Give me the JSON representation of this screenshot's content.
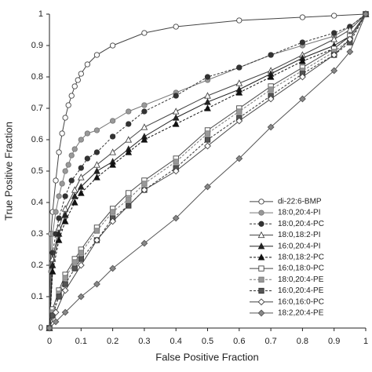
{
  "chart_data": {
    "type": "line",
    "xlabel": "False Positive Fraction",
    "ylabel": "True Positive Fraction",
    "xlim": [
      0,
      1
    ],
    "ylim": [
      0,
      1
    ],
    "xticks": [
      0,
      0.1,
      0.2,
      0.3,
      0.4,
      0.5,
      0.6,
      0.7,
      0.8,
      0.9,
      1
    ],
    "yticks": [
      0,
      0.1,
      0.2,
      0.3,
      0.4,
      0.5,
      0.6,
      0.7,
      0.8,
      0.9,
      1
    ],
    "grid": false,
    "legend": "lower right",
    "series": [
      {
        "name": "di-22:6-BMP",
        "color": "#444444",
        "fill": "#ffffff",
        "marker": "circle",
        "dash": false,
        "x": [
          0,
          0.005,
          0.01,
          0.02,
          0.03,
          0.04,
          0.05,
          0.06,
          0.07,
          0.08,
          0.09,
          0.1,
          0.12,
          0.15,
          0.2,
          0.3,
          0.4,
          0.6,
          0.8,
          0.9,
          1
        ],
        "values": [
          0,
          0.3,
          0.37,
          0.47,
          0.56,
          0.62,
          0.67,
          0.71,
          0.74,
          0.77,
          0.79,
          0.81,
          0.84,
          0.87,
          0.9,
          0.94,
          0.96,
          0.98,
          0.99,
          0.995,
          1
        ]
      },
      {
        "name": "18:0,20:4-PI",
        "color": "#777777",
        "fill": "#999999",
        "marker": "circle",
        "dash": false,
        "x": [
          0,
          0.005,
          0.01,
          0.02,
          0.03,
          0.04,
          0.05,
          0.06,
          0.07,
          0.08,
          0.1,
          0.12,
          0.15,
          0.2,
          0.25,
          0.3,
          0.4,
          0.5,
          0.6,
          0.7,
          0.8,
          0.9,
          0.95,
          1
        ],
        "values": [
          0,
          0.18,
          0.3,
          0.37,
          0.42,
          0.46,
          0.5,
          0.52,
          0.55,
          0.57,
          0.6,
          0.62,
          0.63,
          0.66,
          0.69,
          0.71,
          0.75,
          0.79,
          0.83,
          0.87,
          0.9,
          0.93,
          0.96,
          1
        ]
      },
      {
        "name": "18:0,20:4-PC",
        "color": "#333333",
        "fill": "#333333",
        "marker": "circle",
        "dash": true,
        "x": [
          0,
          0.01,
          0.02,
          0.03,
          0.05,
          0.07,
          0.1,
          0.12,
          0.15,
          0.2,
          0.25,
          0.3,
          0.4,
          0.5,
          0.6,
          0.7,
          0.8,
          0.9,
          0.95,
          1
        ],
        "values": [
          0,
          0.24,
          0.3,
          0.35,
          0.42,
          0.47,
          0.51,
          0.54,
          0.56,
          0.61,
          0.65,
          0.69,
          0.74,
          0.8,
          0.83,
          0.87,
          0.91,
          0.94,
          0.96,
          1
        ]
      },
      {
        "name": "18:0,18:2-PI",
        "color": "#444444",
        "fill": "#ffffff",
        "marker": "triangle",
        "dash": false,
        "x": [
          0,
          0.01,
          0.03,
          0.05,
          0.08,
          0.1,
          0.15,
          0.2,
          0.25,
          0.3,
          0.4,
          0.5,
          0.6,
          0.7,
          0.8,
          0.9,
          0.95,
          1
        ],
        "values": [
          0,
          0.22,
          0.32,
          0.38,
          0.44,
          0.48,
          0.52,
          0.56,
          0.6,
          0.64,
          0.69,
          0.74,
          0.78,
          0.82,
          0.87,
          0.92,
          0.95,
          1
        ]
      },
      {
        "name": "16:0,20:4-PI",
        "color": "#222222",
        "fill": "#222222",
        "marker": "triangle",
        "dash": false,
        "x": [
          0,
          0.01,
          0.03,
          0.05,
          0.08,
          0.1,
          0.15,
          0.2,
          0.25,
          0.3,
          0.4,
          0.5,
          0.6,
          0.7,
          0.8,
          0.9,
          0.95,
          1
        ],
        "values": [
          0,
          0.2,
          0.3,
          0.36,
          0.42,
          0.45,
          0.5,
          0.53,
          0.57,
          0.61,
          0.67,
          0.72,
          0.76,
          0.81,
          0.86,
          0.9,
          0.93,
          1
        ]
      },
      {
        "name": "18:0,18:2-PC",
        "color": "#111111",
        "fill": "#111111",
        "marker": "triangle",
        "dash": true,
        "x": [
          0,
          0.01,
          0.03,
          0.05,
          0.08,
          0.1,
          0.15,
          0.2,
          0.25,
          0.3,
          0.4,
          0.5,
          0.6,
          0.7,
          0.8,
          0.9,
          0.95,
          1
        ],
        "values": [
          0,
          0.18,
          0.28,
          0.34,
          0.4,
          0.43,
          0.48,
          0.52,
          0.56,
          0.6,
          0.65,
          0.7,
          0.75,
          0.8,
          0.85,
          0.89,
          0.93,
          1
        ]
      },
      {
        "name": "16:0,18:0-PC",
        "color": "#444444",
        "fill": "#ffffff",
        "marker": "square",
        "dash": false,
        "x": [
          0,
          0.01,
          0.03,
          0.05,
          0.08,
          0.1,
          0.15,
          0.2,
          0.25,
          0.3,
          0.4,
          0.5,
          0.6,
          0.7,
          0.8,
          0.9,
          0.95,
          1
        ],
        "values": [
          0,
          0.06,
          0.12,
          0.17,
          0.22,
          0.25,
          0.32,
          0.38,
          0.43,
          0.47,
          0.54,
          0.63,
          0.7,
          0.77,
          0.83,
          0.89,
          0.93,
          1
        ]
      },
      {
        "name": "18:0,20:4-PE",
        "color": "#777777",
        "fill": "#999999",
        "marker": "square",
        "dash": true,
        "x": [
          0,
          0.01,
          0.03,
          0.05,
          0.08,
          0.1,
          0.15,
          0.2,
          0.25,
          0.3,
          0.4,
          0.5,
          0.6,
          0.7,
          0.8,
          0.9,
          0.95,
          1
        ],
        "values": [
          0,
          0.05,
          0.11,
          0.16,
          0.21,
          0.24,
          0.31,
          0.37,
          0.41,
          0.46,
          0.53,
          0.62,
          0.69,
          0.76,
          0.82,
          0.88,
          0.92,
          1
        ]
      },
      {
        "name": "16:0,20:4-PE",
        "color": "#333333",
        "fill": "#555555",
        "marker": "square",
        "dash": true,
        "x": [
          0,
          0.01,
          0.03,
          0.05,
          0.08,
          0.1,
          0.15,
          0.2,
          0.25,
          0.3,
          0.4,
          0.5,
          0.6,
          0.7,
          0.8,
          0.9,
          0.95,
          1
        ],
        "values": [
          0,
          0.04,
          0.1,
          0.14,
          0.19,
          0.22,
          0.28,
          0.35,
          0.39,
          0.44,
          0.51,
          0.6,
          0.67,
          0.74,
          0.81,
          0.87,
          0.91,
          1
        ]
      },
      {
        "name": "16:0,16:0-PC",
        "color": "#444444",
        "fill": "#ffffff",
        "marker": "diamond",
        "dash": false,
        "x": [
          0,
          0.02,
          0.05,
          0.1,
          0.15,
          0.2,
          0.3,
          0.4,
          0.5,
          0.6,
          0.7,
          0.8,
          0.9,
          0.95,
          1
        ],
        "values": [
          0,
          0.05,
          0.12,
          0.2,
          0.28,
          0.34,
          0.44,
          0.5,
          0.58,
          0.66,
          0.73,
          0.8,
          0.87,
          0.92,
          1
        ]
      },
      {
        "name": "18:2,20:4-PE",
        "color": "#555555",
        "fill": "#888888",
        "marker": "diamond",
        "dash": false,
        "x": [
          0,
          0.02,
          0.05,
          0.1,
          0.15,
          0.2,
          0.3,
          0.4,
          0.5,
          0.6,
          0.7,
          0.8,
          0.9,
          0.95,
          1
        ],
        "values": [
          0,
          0.02,
          0.05,
          0.1,
          0.14,
          0.19,
          0.27,
          0.35,
          0.45,
          0.54,
          0.64,
          0.73,
          0.82,
          0.88,
          1
        ]
      }
    ]
  }
}
